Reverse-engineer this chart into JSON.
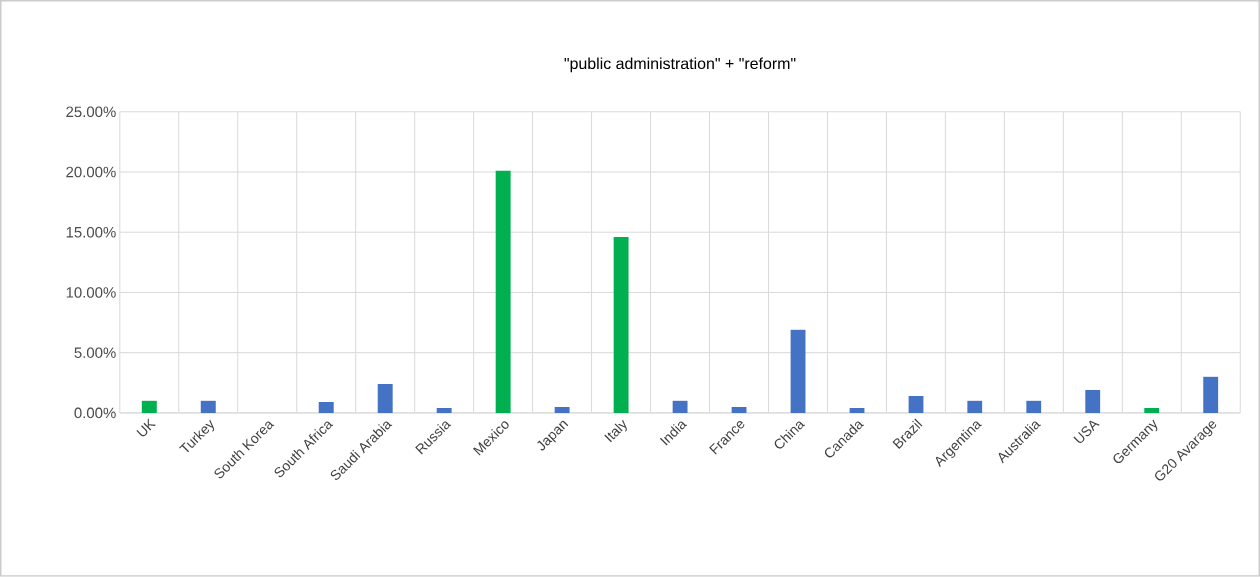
{
  "chart_data": {
    "type": "bar",
    "title": "\"public administration\" + \"reform\"",
    "categories": [
      "UK",
      "Turkey",
      "South Korea",
      "South Africa",
      "Saudi Arabia",
      "Russia",
      "Mexico",
      "Japan",
      "Italy",
      "India",
      "France",
      "China",
      "Canada",
      "Brazil",
      "Argentina",
      "Australia",
      "USA",
      "Germany",
      "G20 Avarage"
    ],
    "values": [
      1.0,
      1.0,
      0,
      0.9,
      2.4,
      0.4,
      20.1,
      0.5,
      14.6,
      1.0,
      0.5,
      6.9,
      0.4,
      1.4,
      1.0,
      1.0,
      1.9,
      0.4,
      3.0
    ],
    "colors": [
      "#00b050",
      "#4472c4",
      "#4472c4",
      "#4472c4",
      "#4472c4",
      "#4472c4",
      "#00b050",
      "#4472c4",
      "#00b050",
      "#4472c4",
      "#4472c4",
      "#4472c4",
      "#4472c4",
      "#4472c4",
      "#4472c4",
      "#4472c4",
      "#4472c4",
      "#00b050",
      "#4472c4"
    ],
    "ylim": [
      0,
      25
    ],
    "yticks": [
      {
        "value": 0,
        "label": "0.00%"
      },
      {
        "value": 5,
        "label": "5.00%"
      },
      {
        "value": 10,
        "label": "10.00%"
      },
      {
        "value": 15,
        "label": "15.00%"
      },
      {
        "value": 20,
        "label": "20.00%"
      },
      {
        "value": 25,
        "label": "25.00%"
      }
    ],
    "grid": true
  }
}
